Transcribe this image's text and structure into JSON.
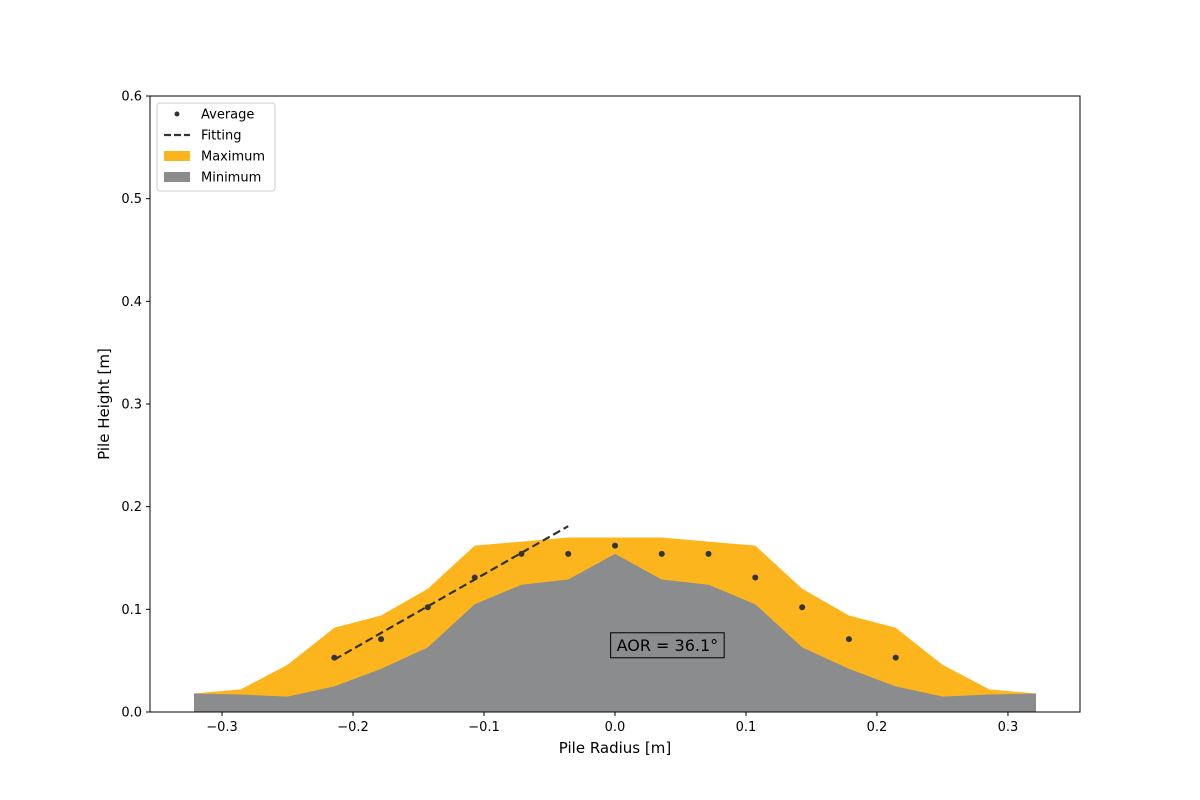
{
  "chart_data": {
    "type": "area",
    "xlabel": "Pile Radius [m]",
    "ylabel": "Pile Height [m]",
    "xlim": [
      -0.355,
      0.355
    ],
    "ylim": [
      0.0,
      0.6
    ],
    "xticks": [
      -0.3,
      -0.2,
      -0.1,
      0.0,
      0.1,
      0.2,
      0.3
    ],
    "xtick_labels": [
      "−0.3",
      "−0.2",
      "−0.1",
      "0.0",
      "0.1",
      "0.2",
      "0.3"
    ],
    "yticks": [
      0.0,
      0.1,
      0.2,
      0.3,
      0.4,
      0.5,
      0.6
    ],
    "ytick_labels": [
      "0.0",
      "0.1",
      "0.2",
      "0.3",
      "0.4",
      "0.5",
      "0.6"
    ],
    "grid": false,
    "legend_position": "top-left",
    "legend": [
      "Average",
      "Fitting",
      "Maximum",
      "Minimum"
    ],
    "series": [
      {
        "name": "Maximum",
        "kind": "area",
        "color": "#fdb51d",
        "x": [
          -0.3214,
          -0.2857,
          -0.25,
          -0.2143,
          -0.1786,
          -0.1429,
          -0.1071,
          -0.0714,
          -0.0357,
          0.0,
          0.0357,
          0.0714,
          0.1071,
          0.1429,
          0.1786,
          0.2143,
          0.25,
          0.2857,
          0.3214
        ],
        "y": [
          0.018,
          0.022,
          0.046,
          0.082,
          0.094,
          0.12,
          0.162,
          0.166,
          0.17,
          0.17,
          0.17,
          0.166,
          0.162,
          0.12,
          0.094,
          0.082,
          0.046,
          0.022,
          0.018
        ]
      },
      {
        "name": "Minimum",
        "kind": "area",
        "color": "#8b8c8e",
        "x": [
          -0.3214,
          -0.2857,
          -0.25,
          -0.2143,
          -0.1786,
          -0.1429,
          -0.1071,
          -0.0714,
          -0.0357,
          0.0,
          0.0357,
          0.0714,
          0.1071,
          0.1429,
          0.1786,
          0.2143,
          0.25,
          0.2857,
          0.3214
        ],
        "y": [
          0.018,
          0.017,
          0.015,
          0.025,
          0.042,
          0.063,
          0.105,
          0.124,
          0.129,
          0.154,
          0.129,
          0.124,
          0.105,
          0.063,
          0.042,
          0.025,
          0.015,
          0.017,
          0.018
        ]
      },
      {
        "name": "Average",
        "kind": "scatter",
        "color": "#333333",
        "x": [
          -0.2143,
          -0.1786,
          -0.1429,
          -0.1071,
          -0.0714,
          -0.0357,
          0.0,
          0.0357,
          0.0714,
          0.1071,
          0.1429,
          0.1786,
          0.2143
        ],
        "y": [
          0.053,
          0.071,
          0.102,
          0.131,
          0.154,
          0.154,
          0.162,
          0.154,
          0.154,
          0.131,
          0.102,
          0.071,
          0.053
        ]
      },
      {
        "name": "Fitting",
        "kind": "line",
        "color": "#333333",
        "dashed": true,
        "x": [
          -0.2143,
          -0.0357
        ],
        "y": [
          0.051,
          0.181
        ]
      }
    ],
    "annotations": [
      {
        "text": "AOR = 36.1°",
        "x": 0.04,
        "y": 0.065
      }
    ]
  }
}
